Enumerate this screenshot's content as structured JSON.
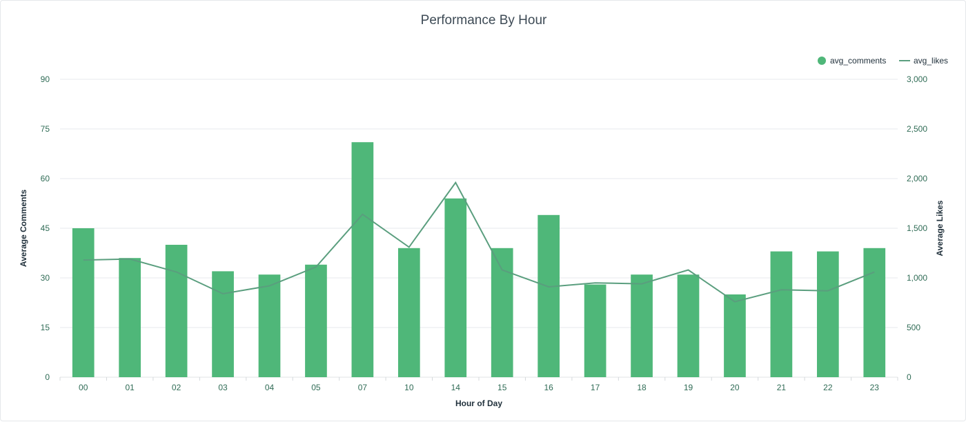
{
  "chart_data": {
    "type": "bar",
    "title": "Performance By Hour",
    "xlabel": "Hour of Day",
    "ylabel_left": "Average Comments",
    "ylabel_right": "Average Likes",
    "categories": [
      "00",
      "01",
      "02",
      "03",
      "04",
      "05",
      "07",
      "10",
      "14",
      "15",
      "16",
      "17",
      "18",
      "19",
      "20",
      "21",
      "22",
      "23"
    ],
    "series": [
      {
        "name": "avg_comments",
        "type": "bar",
        "axis": "left",
        "color": "#4fb779",
        "values": [
          45,
          36,
          40,
          32,
          31,
          34,
          71,
          39,
          54,
          39,
          49,
          28,
          31,
          31,
          25,
          38,
          38,
          39
        ]
      },
      {
        "name": "avg_likes",
        "type": "line",
        "axis": "right",
        "color": "#5a9e7e",
        "values": [
          1180,
          1190,
          1060,
          840,
          920,
          1110,
          1640,
          1310,
          1960,
          1080,
          910,
          950,
          940,
          1080,
          760,
          880,
          870,
          1060
        ]
      }
    ],
    "y_left": {
      "range": [
        0,
        90
      ],
      "ticks": [
        "0",
        "15",
        "30",
        "45",
        "60",
        "75",
        "90"
      ]
    },
    "y_right": {
      "range": [
        0,
        3000
      ],
      "ticks": [
        "0",
        "500",
        "1,000",
        "1,500",
        "2,000",
        "2,500",
        "3,000"
      ]
    },
    "grid": true,
    "legend_position": "top-right"
  }
}
